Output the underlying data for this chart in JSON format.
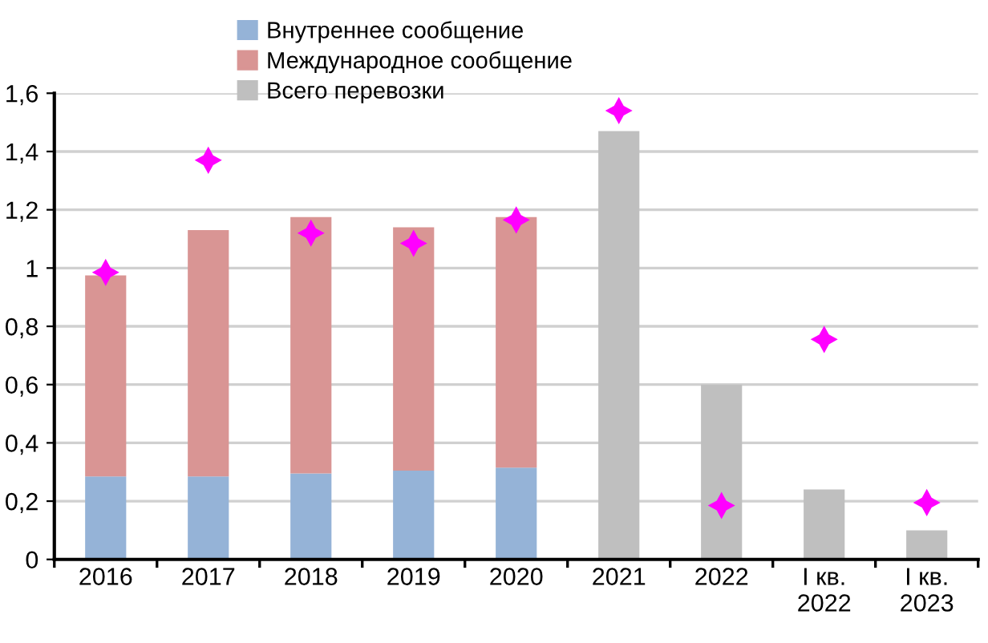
{
  "chart_data": {
    "type": "bar",
    "stacked": true,
    "categories": [
      "2016",
      "2017",
      "2018",
      "2019",
      "2020",
      "2021",
      "2022",
      "I кв.\n2022",
      "I кв.\n2023"
    ],
    "series": [
      {
        "name": "Внутреннее сообщение",
        "color": "#95b3d7",
        "values": [
          0.285,
          0.285,
          0.295,
          0.305,
          0.315,
          null,
          null,
          null,
          null
        ]
      },
      {
        "name": "Международное сообщение",
        "color": "#d99594",
        "values": [
          0.69,
          0.845,
          0.88,
          0.835,
          0.86,
          null,
          null,
          null,
          null
        ]
      },
      {
        "name": "Всего перевозки",
        "color": "#bfbfbf",
        "values": [
          null,
          null,
          null,
          null,
          null,
          1.47,
          0.6,
          0.24,
          0.1
        ]
      },
      {
        "type": "scatter",
        "color": "#ff00ff",
        "marker": "star",
        "values": [
          0.985,
          1.37,
          1.12,
          1.085,
          1.165,
          1.54,
          0.185,
          0.755,
          0.195
        ]
      }
    ],
    "ylim": [
      0,
      1.6
    ],
    "yticks": [
      0,
      {
        "value": 0.2,
        "label": "0,2"
      },
      {
        "value": 0.4,
        "label": "0,4"
      },
      {
        "value": 0.6,
        "label": "0,6"
      },
      {
        "value": 0.8,
        "label": "0,8"
      },
      1,
      {
        "value": 1.2,
        "label": "1,2"
      },
      {
        "value": 1.4,
        "label": "1,4"
      },
      {
        "value": 1.6,
        "label": "1,6"
      }
    ],
    "grid": "y",
    "legend": "top"
  }
}
